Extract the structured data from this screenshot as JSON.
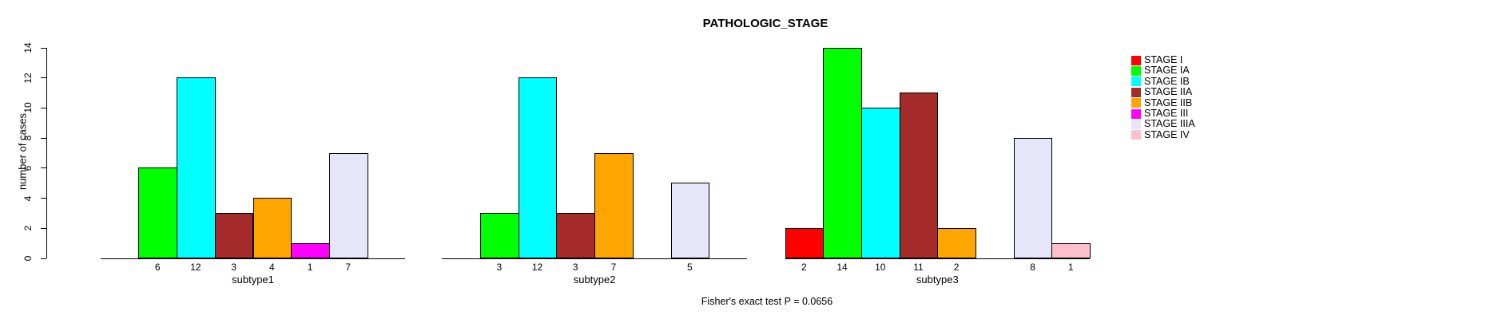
{
  "chart_data": {
    "type": "bar",
    "title": "PATHOLOGIC_STAGE",
    "ylabel": "number of cases",
    "ylim": [
      0,
      14
    ],
    "yticks": [
      0,
      2,
      4,
      6,
      8,
      10,
      12,
      14
    ],
    "grid": false,
    "legend_position": "right",
    "stages": [
      "STAGE I",
      "STAGE IA",
      "STAGE IB",
      "STAGE IIA",
      "STAGE IIB",
      "STAGE III",
      "STAGE IIIA",
      "STAGE IV"
    ],
    "colors": [
      "#FF0000",
      "#00FF00",
      "#00FFFF",
      "#A52A2A",
      "#FFA500",
      "#FF00FF",
      "#E6E6FA",
      "#FFC0CB"
    ],
    "groups": [
      {
        "label": "subtype1",
        "values": [
          0,
          6,
          12,
          3,
          4,
          1,
          7,
          0
        ]
      },
      {
        "label": "subtype2",
        "values": [
          0,
          3,
          12,
          3,
          7,
          0,
          5,
          0
        ]
      },
      {
        "label": "subtype3",
        "values": [
          2,
          14,
          10,
          11,
          2,
          0,
          8,
          1
        ]
      }
    ],
    "annotation": "Fisher's exact test P = 0.0656"
  }
}
